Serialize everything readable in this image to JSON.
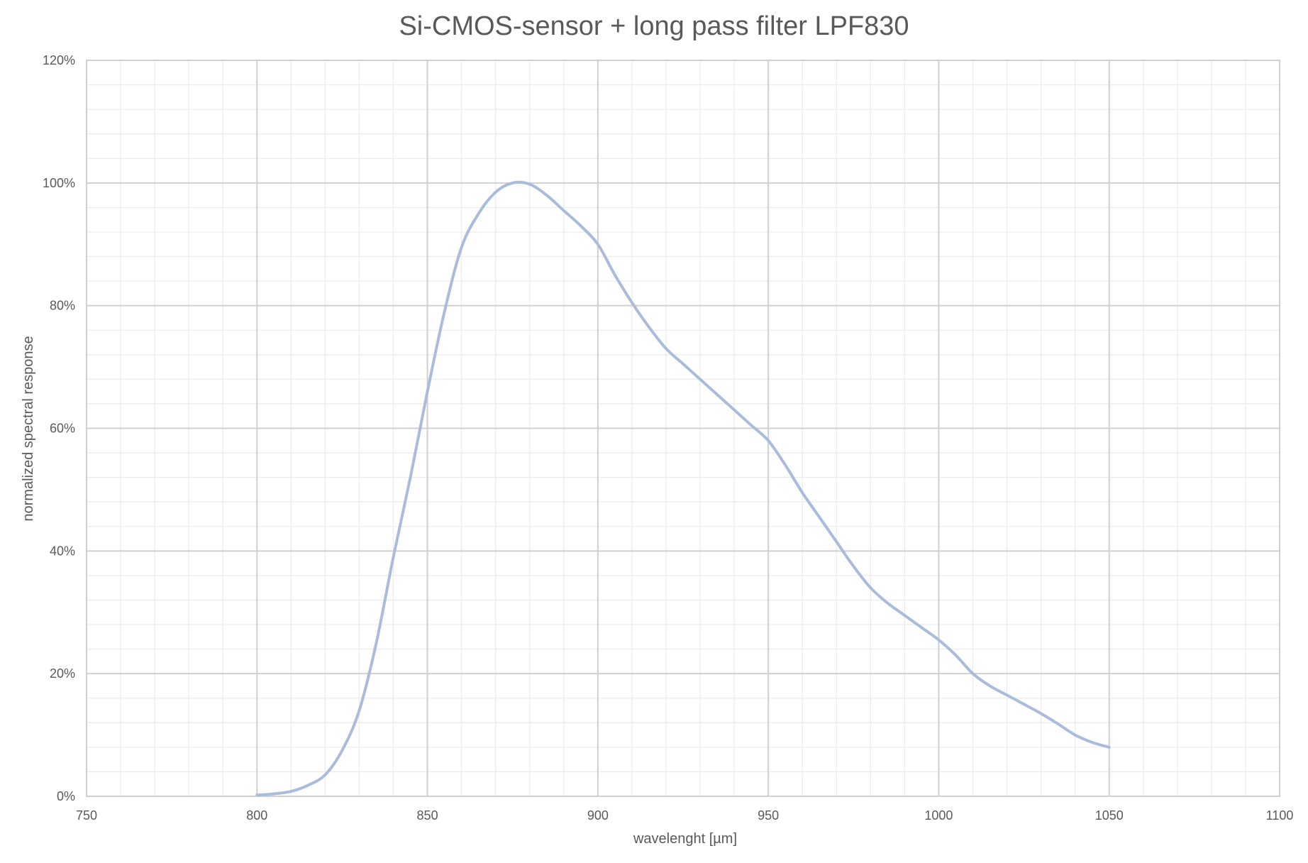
{
  "chart_data": {
    "type": "line",
    "title": "Si-CMOS-sensor + long pass filter LPF830",
    "xlabel": "wavelenght [µm]",
    "ylabel": "normalized spectral response",
    "xlim": [
      750,
      1100
    ],
    "ylim": [
      0,
      120
    ],
    "x_major_ticks": [
      750,
      800,
      850,
      900,
      950,
      1000,
      1050,
      1100
    ],
    "x_minor_step": 10,
    "y_major_ticks": [
      0,
      20,
      40,
      60,
      80,
      100,
      120
    ],
    "y_minor_step": 4,
    "y_tick_suffix": "%",
    "grid": true,
    "legend": "none",
    "colors": {
      "series": "#a9bcdc",
      "grid_major": "#d0d0d0",
      "grid_minor": "#ececec",
      "text": "#595959"
    },
    "series": [
      {
        "x": [
          800,
          805,
          810,
          815,
          820,
          825,
          830,
          835,
          840,
          845,
          850,
          855,
          860,
          865,
          870,
          875,
          880,
          885,
          890,
          895,
          900,
          905,
          910,
          915,
          920,
          925,
          930,
          935,
          940,
          945,
          950,
          955,
          960,
          965,
          970,
          975,
          980,
          985,
          990,
          995,
          1000,
          1005,
          1010,
          1015,
          1020,
          1025,
          1030,
          1035,
          1040,
          1045,
          1050
        ],
        "y": [
          0.2,
          0.4,
          0.8,
          1.8,
          3.5,
          7.5,
          14,
          25,
          39,
          52,
          66,
          79,
          89.5,
          95,
          98.5,
          100,
          99.8,
          98,
          95.5,
          93,
          90,
          85,
          80.5,
          76.5,
          73,
          70.5,
          68,
          65.5,
          63,
          60.5,
          58,
          54,
          49.5,
          45.5,
          41.5,
          37.5,
          34,
          31.5,
          29.5,
          27.5,
          25.5,
          23,
          20,
          18,
          16.5,
          15,
          13.5,
          11.8,
          10,
          8.8,
          8
        ]
      }
    ]
  }
}
